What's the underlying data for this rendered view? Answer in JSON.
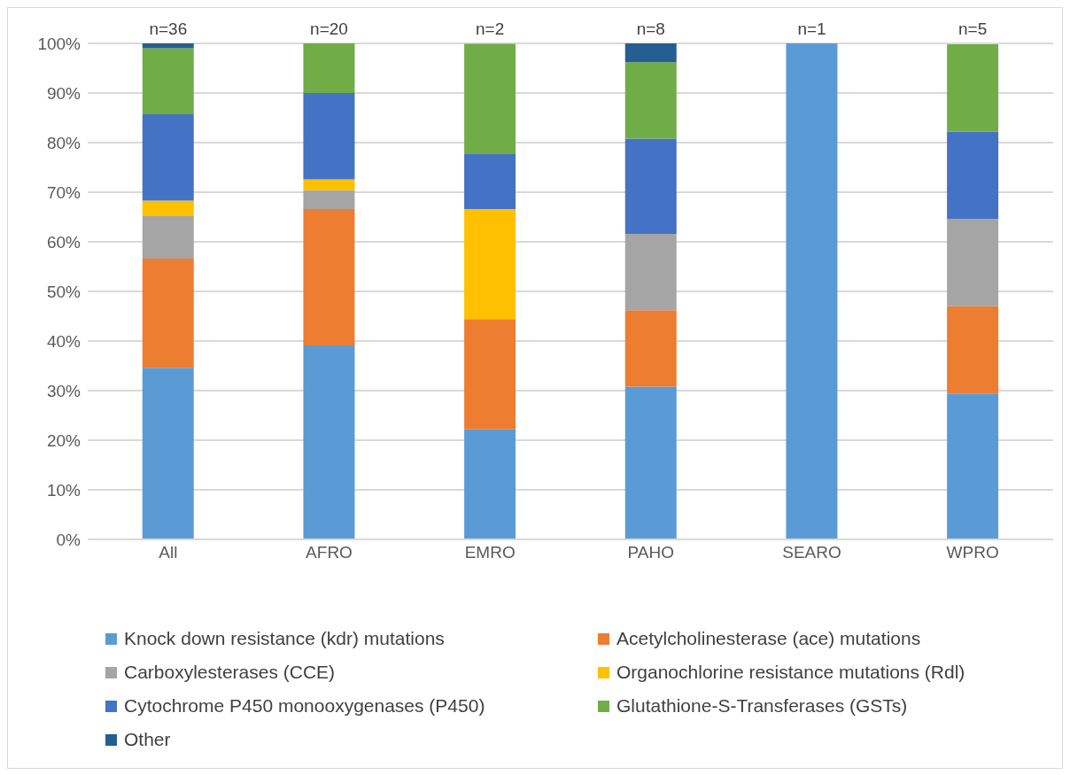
{
  "chart_data": {
    "type": "bar",
    "stacked": true,
    "categories": [
      "All",
      "AFRO",
      "EMRO",
      "PAHO",
      "SEARO",
      "WPRO"
    ],
    "series": [
      {
        "name": "Knock down resistance (kdr) mutations",
        "color": "#5b9bd5",
        "values": [
          34.6,
          39.1,
          22.2,
          30.8,
          100,
          29.4
        ]
      },
      {
        "name": "Acetylcholinesterase (ace) mutations",
        "color": "#ed7d31",
        "values": [
          22.0,
          27.5,
          22.2,
          15.4,
          0,
          17.6
        ]
      },
      {
        "name": "Carboxylesterases (CCE)",
        "color": "#a5a5a5",
        "values": [
          8.6,
          3.8,
          0,
          15.4,
          0,
          17.6
        ]
      },
      {
        "name": "Organochlorine resistance mutations (Rdl)",
        "color": "#ffc000",
        "values": [
          3.1,
          2.2,
          22.2,
          0,
          0,
          0
        ]
      },
      {
        "name": "Cytochrome P450 monooxygenases (P450)",
        "color": "#4472c4",
        "values": [
          17.4,
          17.4,
          11.1,
          19.2,
          0,
          17.6
        ]
      },
      {
        "name": "Glutathione-S-Transferases (GSTs)",
        "color": "#70ad47",
        "values": [
          13.3,
          10.0,
          22.2,
          15.4,
          0,
          17.6
        ]
      },
      {
        "name": "Other",
        "color": "#255e91",
        "values": [
          1.0,
          0,
          0,
          3.8,
          0,
          0
        ]
      }
    ],
    "annotations": [
      {
        "text": "n=36",
        "x": "All",
        "y": 100
      },
      {
        "text": "n=20",
        "x": "AFRO",
        "y": 100
      },
      {
        "text": "n=2",
        "x": "EMRO",
        "y": 100
      },
      {
        "text": "n=8",
        "x": "PAHO",
        "y": 100
      },
      {
        "text": "n=1",
        "x": "SEARO",
        "y": 100
      },
      {
        "text": "n=5",
        "x": "WPRO",
        "y": 100
      }
    ],
    "ylim": [
      0,
      100
    ],
    "yticks": [
      {
        "value": 0,
        "label": "0%"
      },
      {
        "value": 10,
        "label": "10%"
      },
      {
        "value": 20,
        "label": "20%"
      },
      {
        "value": 30,
        "label": "30%"
      },
      {
        "value": 40,
        "label": "40%"
      },
      {
        "value": 50,
        "label": "50%"
      },
      {
        "value": 60,
        "label": "60%"
      },
      {
        "value": 70,
        "label": "70%"
      },
      {
        "value": 80,
        "label": "80%"
      },
      {
        "value": 90,
        "label": "90%"
      },
      {
        "value": 100,
        "label": "100%"
      }
    ],
    "grid": "y",
    "legend": "bottom"
  }
}
